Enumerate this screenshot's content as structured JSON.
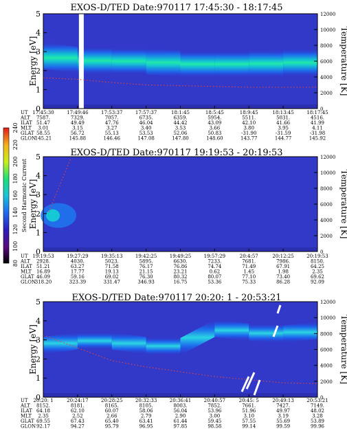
{
  "chart_data": {
    "type": "heatmap",
    "colorbar": {
      "label": "Second Harmonic Current",
      "ticks": [
        "80",
        "100",
        "120",
        "140",
        "160",
        "180",
        "200",
        "220",
        "240"
      ]
    },
    "panels": [
      {
        "title": "EXOS-D/TED   Date:970117  17:45:30 - 18:17:45",
        "ylabel": "Energy [eV]",
        "ylabel2": "Temperature [K]",
        "yticks": [
          "0",
          "1",
          "2",
          "3",
          "4",
          "5"
        ],
        "y2ticks": [
          "0",
          "2000",
          "4000",
          "6000",
          "8000",
          "10000",
          "12000"
        ],
        "ylim": [
          0,
          5
        ],
        "y2lim": [
          0,
          12000
        ],
        "xticks": [
          "17:45:30",
          "17:49:46",
          "17:53:37",
          "17:57:37",
          "18:1:45",
          "18:5:45",
          "18:9:45",
          "18:13:45",
          "18:17:45"
        ],
        "band_center": [
          2.8,
          2.55,
          2.5,
          2.5,
          2.35,
          2.35,
          2.35,
          2.4,
          2.45
        ],
        "temperature": [
          3900,
          3700,
          3300,
          3000,
          2900,
          2800,
          2700,
          2700,
          2700
        ],
        "gap_at": 1,
        "rows": [
          {
            "name": "UT",
            "values": [
              "17:45:30",
              "17:49:46",
              "17:53:37",
              "17:57:37",
              "18:1:45",
              "18:5:45",
              "18:9:45",
              "18:13:45",
              "18:17:45"
            ]
          },
          {
            "name": "ALT",
            "values": [
              "7587.",
              "7329.",
              "7057.",
              "6735.",
              "6359.",
              "5954.",
              "5511.",
              "5031.",
              "4516."
            ]
          },
          {
            "name": "ILAT",
            "values": [
              "51.47",
              "49.49",
              "47.76",
              "46.04",
              "44.42",
              "43.09",
              "42.10",
              "41.66",
              "41.99"
            ]
          },
          {
            "name": "MLT",
            "values": [
              "3.01",
              "3.15",
              "3.27",
              "3.40",
              "3.53",
              "3.66",
              "3.80",
              "3.95",
              "4.11"
            ]
          },
          {
            "name": "GLAT",
            "values": [
              "58.55",
              "56.72",
              "55.13",
              "53.53",
              "52.06",
              "50.83",
              "-31.90",
              "-31.59",
              "-31.98"
            ]
          },
          {
            "name": "GLON",
            "values": [
              "145.21",
              "145.88",
              "146.46",
              "147.08",
              "147.80",
              "148.60",
              "143.77",
              "144.77",
              "145.92"
            ]
          }
        ]
      },
      {
        "title": "EXOS-D/TED   Date:970117  19:19:53 - 20:19:53",
        "ylabel": "Energy [eV]",
        "ylabel2": "Temperature [K]",
        "yticks": [
          "0",
          "1",
          "2",
          "3",
          "4",
          "5"
        ],
        "y2ticks": [
          "0",
          "2000",
          "4000",
          "6000",
          "8000",
          "10000",
          "12000"
        ],
        "ylim": [
          0,
          5
        ],
        "y2lim": [
          0,
          12000
        ],
        "xticks": [
          "19:19:53",
          "19:27:29",
          "19:35:13",
          "19:42:25",
          "19:49:25",
          "19:57:29",
          "20:4:57",
          "20:12:25",
          "20:19:53"
        ],
        "band_center": [
          1.9
        ],
        "temperature": [
          5000,
          11800
        ],
        "gap_at": null,
        "rows": [
          {
            "name": "UT",
            "values": [
              "19:19:53",
              "19:27:29",
              "19:35:13",
              "19:42:25",
              "19:49:25",
              "19:57:29",
              "20:4:57",
              "20:12:25",
              "20:19:53"
            ]
          },
          {
            "name": "ALT",
            "values": [
              "2928.",
              "4030.",
              "5023.",
              "5895.",
              "6630.",
              "7233.",
              "7681.",
              "7986.",
              "8150."
            ]
          },
          {
            "name": "ILAT",
            "values": [
              "51.21",
              "63.27",
              "71.58",
              "76.17",
              "76.86",
              "74.74",
              "71.49",
              "67.91",
              "64.25"
            ]
          },
          {
            "name": "MLT",
            "values": [
              "16.89",
              "17.77",
              "19.13",
              "21.15",
              "23.21",
              "0.62",
              "1.45",
              "1.98",
              "2.35"
            ]
          },
          {
            "name": "GLAT",
            "values": [
              "46.09",
              "59.16",
              "69.02",
              "76.30",
              "80.32",
              "80.07",
              "77.10",
              "73.40",
              "69.62"
            ]
          },
          {
            "name": "GLON",
            "values": [
              "318.20",
              "323.39",
              "331.47",
              "346.93",
              "16.75",
              "53.36",
              "75.33",
              "86.28",
              "92.09"
            ]
          }
        ]
      },
      {
        "title": "EXOS-D/TED   Date:970117  20:20: 1 - 20:53:21",
        "ylabel": "Energy [eV]",
        "ylabel2": "Temperature [K]",
        "yticks": [
          "0",
          "1",
          "2",
          "3",
          "4",
          "5"
        ],
        "y2ticks": [
          "0",
          "2000",
          "4000",
          "6000",
          "8000",
          "10000",
          "12000"
        ],
        "ylim": [
          0,
          5
        ],
        "y2lim": [
          0,
          12000
        ],
        "xticks": [
          "20:20: 1",
          "20:24:17",
          "20:28:25",
          "20:32:33",
          "20:36:41",
          "20:40:57",
          "20:45: 5",
          "20:49:13",
          "20:53:21"
        ],
        "band_center": [
          2.7,
          2.95,
          2.95,
          2.7,
          2.65,
          3.6,
          3.4,
          3.3,
          3.5
        ],
        "temperature": [
          7800,
          6200,
          4600,
          3800,
          3200,
          2600,
          2200,
          1800,
          1700
        ],
        "gap_at": null,
        "rows": [
          {
            "name": "UT",
            "values": [
              "20:20: 1",
              "20:24:17",
              "20:28:25",
              "20:32:33",
              "20:36:41",
              "20:40:57",
              "20:45: 5",
              "20:49:13",
              "20:53:21"
            ]
          },
          {
            "name": "ALT",
            "values": [
              "8152.",
              "8181.",
              "8165.",
              "8105.",
              "8003.",
              "7852.",
              "7661.",
              "7427.",
              "7149."
            ]
          },
          {
            "name": "ILAT",
            "values": [
              "64.18",
              "62.10",
              "60.07",
              "58.06",
              "56.04",
              "53.96",
              "51.96",
              "49.97",
              "48.02"
            ]
          },
          {
            "name": "MLT",
            "values": [
              "2.35",
              "2.52",
              "2.66",
              "2.79",
              "2.90",
              "3.00",
              "3.10",
              "3.19",
              "3.28"
            ]
          },
          {
            "name": "GLAT",
            "values": [
              "69.55",
              "67.43",
              "65.40",
              "63.41",
              "61.44",
              "59.45",
              "57.55",
              "55.69",
              "53.89"
            ]
          },
          {
            "name": "GLON",
            "values": [
              "92.17",
              "94.27",
              "95.79",
              "96.95",
              "97.85",
              "98.58",
              "99.14",
              "99.59",
              "99.96"
            ]
          }
        ]
      }
    ]
  }
}
